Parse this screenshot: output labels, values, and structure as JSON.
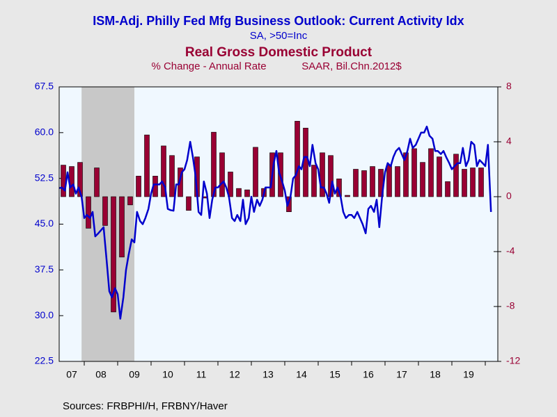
{
  "chart_data": {
    "type": "combo",
    "series": [
      {
        "type": "line",
        "name": "ISM-Adj. Philly Fed Mfg Business Outlook: Current Activity Idx",
        "subtitle": "SA, >50=Inc",
        "color": "#0000cc",
        "axis": "y",
        "x": [
          2007.25,
          2007.33,
          2007.42,
          2007.5,
          2007.58,
          2007.67,
          2007.75,
          2007.83,
          2007.92,
          2008,
          2008.08,
          2008.17,
          2008.25,
          2008.33,
          2008.42,
          2008.5,
          2008.58,
          2008.67,
          2008.75,
          2008.83,
          2008.92,
          2009,
          2009.08,
          2009.17,
          2009.25,
          2009.33,
          2009.42,
          2009.5,
          2009.58,
          2009.67,
          2009.75,
          2009.83,
          2009.92,
          2010,
          2010.08,
          2010.17,
          2010.25,
          2010.33,
          2010.42,
          2010.5,
          2010.58,
          2010.67,
          2010.75,
          2010.83,
          2010.92,
          2011,
          2011.08,
          2011.17,
          2011.25,
          2011.33,
          2011.42,
          2011.5,
          2011.58,
          2011.67,
          2011.75,
          2011.83,
          2011.92,
          2012,
          2012.08,
          2012.17,
          2012.25,
          2012.33,
          2012.42,
          2012.5,
          2012.58,
          2012.67,
          2012.75,
          2012.83,
          2012.92,
          2013,
          2013.08,
          2013.17,
          2013.25,
          2013.33,
          2013.42,
          2013.5,
          2013.58,
          2013.67,
          2013.75,
          2013.83,
          2013.92,
          2014,
          2014.08,
          2014.17,
          2014.25,
          2014.33,
          2014.42,
          2014.5,
          2014.58,
          2014.67,
          2014.75,
          2014.83,
          2014.92,
          2015,
          2015.08,
          2015.17,
          2015.25,
          2015.33,
          2015.42,
          2015.5,
          2015.58,
          2015.67,
          2015.75,
          2015.83,
          2015.92,
          2016,
          2016.08,
          2016.17,
          2016.25,
          2016.33,
          2016.42,
          2016.5,
          2016.58,
          2016.67,
          2016.75,
          2016.83,
          2016.92,
          2017,
          2017.08,
          2017.17,
          2017.25,
          2017.33,
          2017.42,
          2017.5,
          2017.58,
          2017.67,
          2017.75,
          2017.83,
          2017.92,
          2018,
          2018.08,
          2018.17,
          2018.25,
          2018.33,
          2018.42,
          2018.5,
          2018.58,
          2018.67,
          2018.75,
          2018.83,
          2018.92,
          2019,
          2019.08,
          2019.17,
          2019.25,
          2019.33,
          2019.42,
          2019.5,
          2019.58,
          2019.67,
          2019.75,
          2019.83,
          2019.92,
          2020,
          2020.08,
          2020.17
        ],
        "values": [
          50.9,
          51,
          50.5,
          53.5,
          51,
          51.5,
          50,
          51,
          49.5,
          46,
          46.5,
          46,
          47,
          43,
          43.5,
          44,
          44.5,
          39,
          34,
          33,
          34.5,
          33.5,
          29.5,
          33,
          37.5,
          40,
          42.5,
          42,
          47,
          45.5,
          45,
          46,
          47.5,
          50,
          51.5,
          51.5,
          51.5,
          52,
          51,
          47.5,
          47.3,
          47.2,
          51.5,
          51.5,
          53.5,
          54,
          55.5,
          58.5,
          56,
          53,
          47,
          46.5,
          52,
          50,
          46,
          49,
          51,
          51,
          51.5,
          52,
          51,
          49.5,
          46,
          45.5,
          46.5,
          45.5,
          49,
          45,
          46,
          49.5,
          47,
          49,
          48,
          49,
          51,
          51,
          51,
          55,
          57,
          53.5,
          52,
          50.5,
          48,
          49.5,
          52.5,
          53,
          54.5,
          54,
          56,
          56,
          54.5,
          58,
          55,
          54,
          51,
          51,
          50,
          48.5,
          52,
          50,
          51,
          49.5,
          47,
          46,
          46.5,
          46.5,
          46,
          47,
          46,
          45,
          43.5,
          47.5,
          48,
          47,
          49,
          44.5,
          50,
          53.5,
          55,
          54.5,
          56,
          57,
          57.5,
          56.5,
          55.5,
          57,
          59,
          57.5,
          58,
          59,
          60,
          60,
          61,
          59.5,
          59,
          57,
          57,
          56.5,
          57,
          56,
          55,
          54,
          54.5,
          55,
          55,
          57.5,
          54.5,
          55.5,
          58.5,
          58,
          54.5,
          55.5,
          55,
          54.5,
          58,
          47
        ]
      },
      {
        "type": "bar",
        "name": "Real Gross Domestic Product",
        "subtitle": "% Change - Annual Rate",
        "subtitle2": "SAAR, Bil.Chn.2012$",
        "color": "#990033",
        "axis": "y2",
        "x": [
          2007.375,
          2007.625,
          2007.875,
          2008.125,
          2008.375,
          2008.625,
          2008.875,
          2009.125,
          2009.375,
          2009.625,
          2009.875,
          2010.125,
          2010.375,
          2010.625,
          2010.875,
          2011.125,
          2011.375,
          2011.625,
          2011.875,
          2012.125,
          2012.375,
          2012.625,
          2012.875,
          2013.125,
          2013.375,
          2013.625,
          2013.875,
          2014.125,
          2014.375,
          2014.625,
          2014.875,
          2015.125,
          2015.375,
          2015.625,
          2015.875,
          2016.125,
          2016.375,
          2016.625,
          2016.875,
          2017.125,
          2017.375,
          2017.625,
          2017.875,
          2018.125,
          2018.375,
          2018.625,
          2018.875,
          2019.125,
          2019.375,
          2019.625,
          2019.875
        ],
        "values": [
          2.3,
          2.2,
          2.5,
          -2.3,
          2.1,
          -2.1,
          -8.4,
          -4.4,
          -0.6,
          1.5,
          4.5,
          1.5,
          3.7,
          3.0,
          2.1,
          -1.0,
          2.9,
          -0.1,
          4.7,
          3.2,
          1.8,
          0.6,
          0.5,
          3.6,
          0.6,
          3.2,
          3.2,
          -1.1,
          5.5,
          5.0,
          2.3,
          3.2,
          3.0,
          1.3,
          0.1,
          2.0,
          1.9,
          2.2,
          2.0,
          2.3,
          2.2,
          3.2,
          3.5,
          2.5,
          3.5,
          2.9,
          1.1,
          3.1,
          2.0,
          2.1,
          2.1
        ]
      }
    ],
    "shade": [
      2007.92,
      2009.5
    ],
    "xlim": [
      2007.25,
      2020.375
    ],
    "xticks": [
      {
        "value": 2007,
        "label": "07"
      },
      {
        "value": 2008,
        "label": "08"
      },
      {
        "value": 2009,
        "label": "09"
      },
      {
        "value": 2010,
        "label": "10"
      },
      {
        "value": 2011,
        "label": "11"
      },
      {
        "value": 2012,
        "label": "12"
      },
      {
        "value": 2013,
        "label": "13"
      },
      {
        "value": 2014,
        "label": "14"
      },
      {
        "value": 2015,
        "label": "15"
      },
      {
        "value": 2016,
        "label": "16"
      },
      {
        "value": 2017,
        "label": "17"
      },
      {
        "value": 2018,
        "label": "18"
      },
      {
        "value": 2019,
        "label": "19"
      },
      {
        "value": 2020,
        "label": ""
      }
    ],
    "ylim": [
      22.5,
      67.5
    ],
    "yticks": [
      22.5,
      {
        "value": 30,
        "label": "30.0"
      },
      37.5,
      {
        "value": 45,
        "label": "45.0"
      },
      52.5,
      {
        "value": 60,
        "label": "60.0"
      },
      67.5
    ],
    "y2lim": [
      -12,
      8
    ],
    "y2ticks": [
      -12,
      -8,
      -4,
      0,
      4,
      8
    ],
    "source": "Sources:  FRBPHI/H, FRBNY/Haver"
  }
}
